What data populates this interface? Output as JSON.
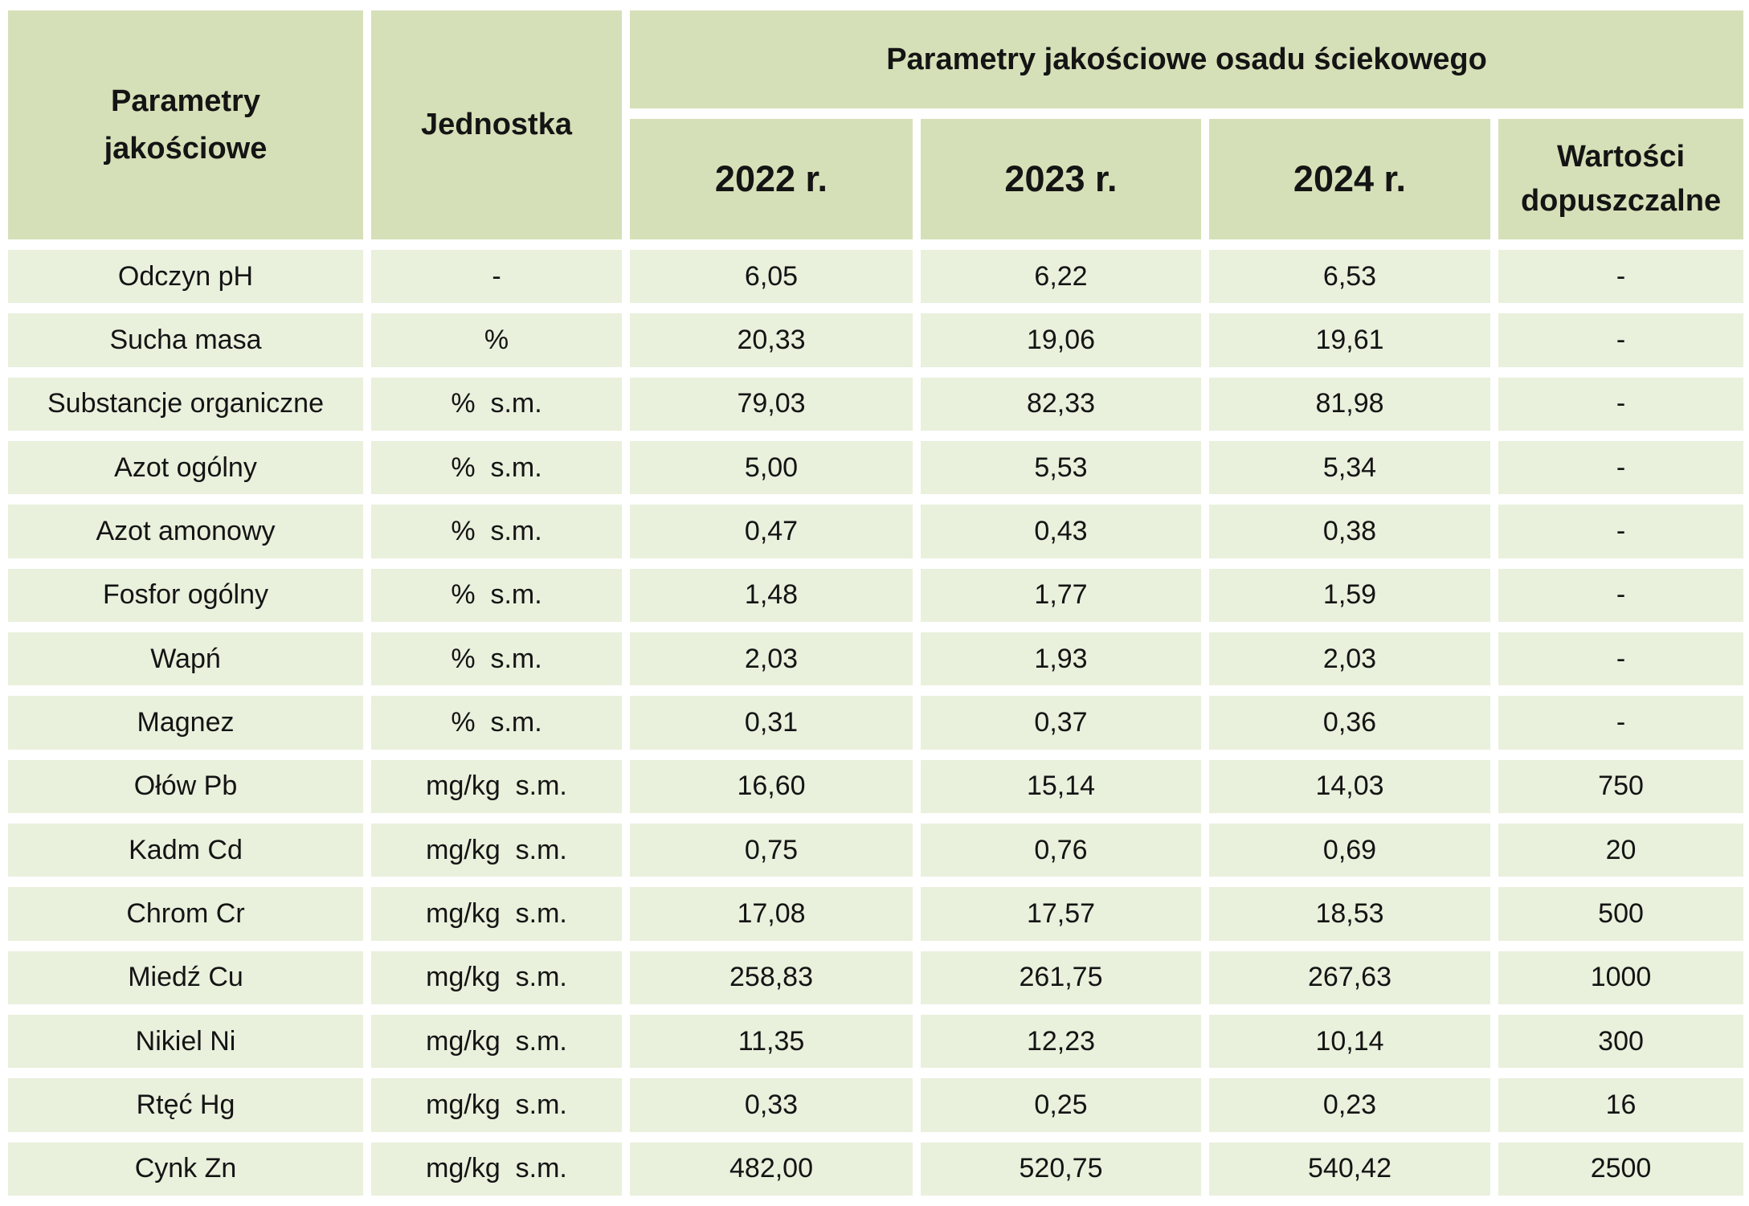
{
  "chart_data": {
    "type": "table",
    "title": "Parametry jakościowe osadu ściekowego",
    "headers": {
      "param": "Parametry jakościowe",
      "unit": "Jednostka",
      "years": [
        "2022 r.",
        "2023 r.",
        "2024 r."
      ],
      "limit": "Wartości dopuszczalne"
    },
    "columns": [
      "Parametry jakościowe",
      "Jednostka",
      "2022 r.",
      "2023 r.",
      "2024 r.",
      "Wartości dopuszczalne"
    ],
    "rows": [
      {
        "param": "Odczyn pH",
        "unit": "-",
        "y2022": "6,05",
        "y2023": "6,22",
        "y2024": "6,53",
        "limit": "-"
      },
      {
        "param": "Sucha masa",
        "unit": "%",
        "y2022": "20,33",
        "y2023": "19,06",
        "y2024": "19,61",
        "limit": "-"
      },
      {
        "param": "Substancje organiczne",
        "unit": "%  s.m.",
        "y2022": "79,03",
        "y2023": "82,33",
        "y2024": "81,98",
        "limit": "-"
      },
      {
        "param": "Azot ogólny",
        "unit": "%  s.m.",
        "y2022": "5,00",
        "y2023": "5,53",
        "y2024": "5,34",
        "limit": "-"
      },
      {
        "param": "Azot amonowy",
        "unit": "%  s.m.",
        "y2022": "0,47",
        "y2023": "0,43",
        "y2024": "0,38",
        "limit": "-"
      },
      {
        "param": "Fosfor ogólny",
        "unit": "%  s.m.",
        "y2022": "1,48",
        "y2023": "1,77",
        "y2024": "1,59",
        "limit": "-"
      },
      {
        "param": "Wapń",
        "unit": "%  s.m.",
        "y2022": "2,03",
        "y2023": "1,93",
        "y2024": "2,03",
        "limit": "-"
      },
      {
        "param": "Magnez",
        "unit": "%  s.m.",
        "y2022": "0,31",
        "y2023": "0,37",
        "y2024": "0,36",
        "limit": "-"
      },
      {
        "param": "Ołów Pb",
        "unit": "mg/kg  s.m.",
        "y2022": "16,60",
        "y2023": "15,14",
        "y2024": "14,03",
        "limit": "750"
      },
      {
        "param": "Kadm Cd",
        "unit": "mg/kg  s.m.",
        "y2022": "0,75",
        "y2023": "0,76",
        "y2024": "0,69",
        "limit": "20"
      },
      {
        "param": "Chrom Cr",
        "unit": "mg/kg  s.m.",
        "y2022": "17,08",
        "y2023": "17,57",
        "y2024": "18,53",
        "limit": "500"
      },
      {
        "param": "Miedź Cu",
        "unit": "mg/kg  s.m.",
        "y2022": "258,83",
        "y2023": "261,75",
        "y2024": "267,63",
        "limit": "1000"
      },
      {
        "param": "Nikiel Ni",
        "unit": "mg/kg  s.m.",
        "y2022": "11,35",
        "y2023": "12,23",
        "y2024": "10,14",
        "limit": "300"
      },
      {
        "param": "Rtęć Hg",
        "unit": "mg/kg  s.m.",
        "y2022": "0,33",
        "y2023": "0,25",
        "y2024": "0,23",
        "limit": "16"
      },
      {
        "param": "Cynk Zn",
        "unit": "mg/kg  s.m.",
        "y2022": "482,00",
        "y2023": "520,75",
        "y2024": "540,42",
        "limit": "2500"
      }
    ],
    "layout": "white gaps between flat green cells, no cell borders, all text centered"
  },
  "colors": {
    "header_bg": "#d6e0b8",
    "row_bg": "#e9f0dc",
    "page_bg": "#ffffff",
    "text": "#141414"
  }
}
